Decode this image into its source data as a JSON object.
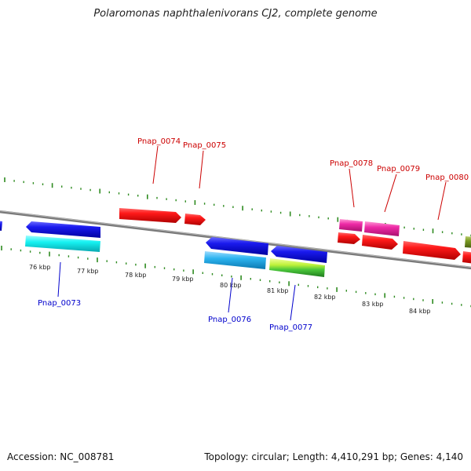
{
  "title": "Polaromonas naphthalenivorans CJ2, complete genome",
  "footer": {
    "accession": "Accession: NC_008781",
    "summary": "Topology: circular; Length: 4,410,291 bp; Genes: 4,140"
  },
  "colors": {
    "backbone": "#808080",
    "tick": "#2e8b20",
    "label_top": "#cc0000",
    "label_bottom": "#0000cc"
  },
  "kbp_ticks": [
    "76 kbp",
    "77 kbp",
    "78 kbp",
    "79 kbp",
    "80 kbp",
    "81 kbp",
    "82 kbp",
    "83 kbp",
    "84 kbp"
  ],
  "genes_top": [
    {
      "id": "Pnap_0074",
      "label": "Pnap_0074",
      "color": "#ee1111"
    },
    {
      "id": "Pnap_0075",
      "label": "Pnap_0075",
      "color": "#ee1111"
    },
    {
      "id": "Pnap_0078",
      "label": "Pnap_0078",
      "color": "#e6249a"
    },
    {
      "id": "Pnap_0079",
      "label": "Pnap_0079",
      "color": "#ee1111"
    },
    {
      "id": "Pnap_0080",
      "label": "Pnap_0080",
      "color": "#ee1111"
    }
  ],
  "genes_bottom": [
    {
      "id": "Pnap_0073",
      "label": "Pnap_0073",
      "color": "#1111dd"
    },
    {
      "id": "Pnap_0076",
      "label": "Pnap_0076",
      "color": "#1111dd"
    },
    {
      "id": "Pnap_0077",
      "label": "Pnap_0077",
      "color": "#1111dd"
    }
  ]
}
